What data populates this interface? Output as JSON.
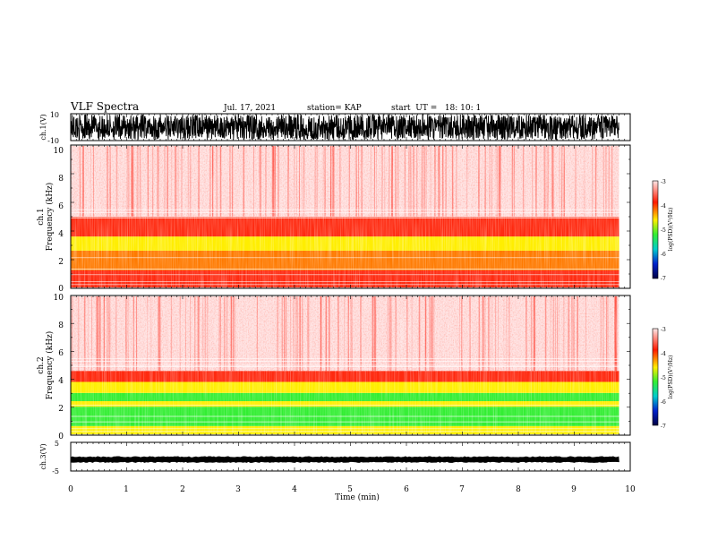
{
  "header": {
    "title": "VLF Spectra",
    "date": "Jul. 17, 2021",
    "station": "station= KAP",
    "start": "start  UT =   18: 10: 1"
  },
  "chart_data": [
    {
      "type": "line",
      "panel": "ch1-waveform",
      "ylabel": "ch.1(V)",
      "ylim": [
        -10,
        10
      ],
      "xlim": [
        0,
        10
      ],
      "yticks": [
        "10",
        "-10"
      ],
      "trace": "black waveform spanning roughly -10 to 10 V over 0–9.8 min"
    },
    {
      "type": "heatmap",
      "panel": "ch1-spectrogram",
      "ylabel_top": "ch.1",
      "ylabel": "Frequency (kHz)",
      "ylim": [
        0,
        10
      ],
      "xlim": [
        0,
        9.8
      ],
      "yticks": [
        "0",
        "2",
        "4",
        "6",
        "8",
        "10"
      ],
      "bands": [
        {
          "from": 0.0,
          "to": 1.2,
          "level": "red"
        },
        {
          "from": 1.2,
          "to": 2.6,
          "level": "red-yellow"
        },
        {
          "from": 2.6,
          "to": 3.6,
          "level": "yellow"
        },
        {
          "from": 3.6,
          "to": 5.0,
          "level": "red"
        },
        {
          "from": 5.0,
          "to": 10.0,
          "level": "pink"
        }
      ],
      "colorbar": {
        "label": "log(PSD)(V²/Hz)",
        "ticks": [
          "-3",
          "-4",
          "-5",
          "-6",
          "-7"
        ]
      }
    },
    {
      "type": "heatmap",
      "panel": "ch2-spectrogram",
      "ylabel_top": "ch.2",
      "ylabel": "Frequency (kHz)",
      "ylim": [
        0,
        10
      ],
      "xlim": [
        0,
        9.8
      ],
      "yticks": [
        "0",
        "2",
        "4",
        "6",
        "8",
        "10"
      ],
      "bands": [
        {
          "from": 0.0,
          "to": 0.6,
          "level": "yellow"
        },
        {
          "from": 0.6,
          "to": 2.0,
          "level": "green"
        },
        {
          "from": 2.0,
          "to": 2.4,
          "level": "yellow"
        },
        {
          "from": 2.4,
          "to": 3.0,
          "level": "green"
        },
        {
          "from": 3.0,
          "to": 3.8,
          "level": "yellow"
        },
        {
          "from": 3.8,
          "to": 4.6,
          "level": "red"
        },
        {
          "from": 4.6,
          "to": 10.0,
          "level": "pink"
        }
      ],
      "colorbar": {
        "label": "log(PSD)(V²/Hz)",
        "ticks": [
          "-3",
          "-4",
          "-5",
          "-6",
          "-7"
        ]
      }
    },
    {
      "type": "line",
      "panel": "ch3-waveform",
      "ylabel": "ch.3(V)",
      "ylim": [
        -5,
        5
      ],
      "xlim": [
        0,
        10
      ],
      "yticks": [
        "5",
        "-5"
      ],
      "trace": "thick black band near -1 V across 0–9.8 min"
    }
  ],
  "xaxis": {
    "label": "Time (min)",
    "ticks": [
      "0",
      "1",
      "2",
      "3",
      "4",
      "5",
      "6",
      "7",
      "8",
      "9",
      "10"
    ]
  },
  "colors": {
    "pink": "#ffe0e0",
    "red": "#ff2a10",
    "yellow": "#ffee00",
    "green": "#33ee33",
    "cyan": "#00cccc",
    "blue": "#0022cc",
    "darkblue": "#000055"
  }
}
